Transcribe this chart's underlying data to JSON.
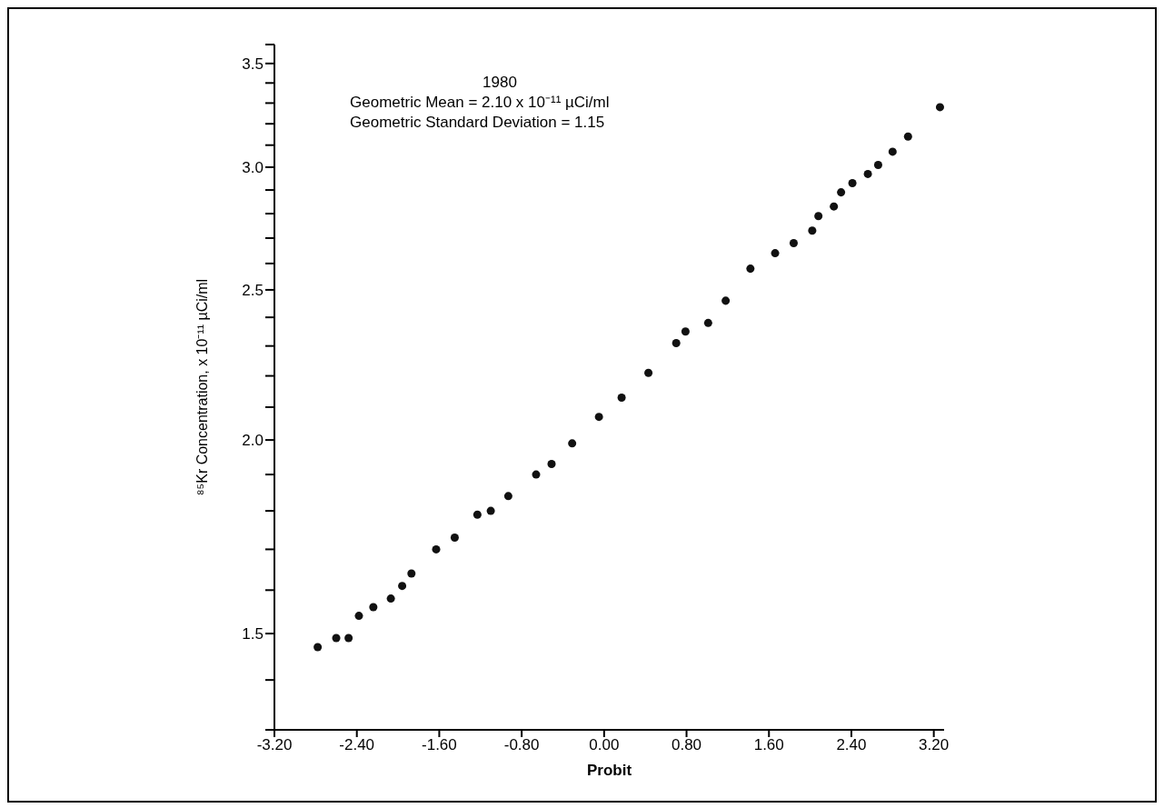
{
  "chart_data": {
    "type": "scatter",
    "xlabel": "Probit",
    "ylabel": "⁸⁵Kr Concentration, x 10⁻¹¹ µCi/ml",
    "annotations": [
      "1980",
      "Geometric Mean = 2.10 x 10⁻¹¹ µCi/ml",
      "Geometric Standard Deviation = 1.15"
    ],
    "x": [
      -2.78,
      -2.6,
      -2.48,
      -2.38,
      -2.24,
      -2.07,
      -1.96,
      -1.87,
      -1.63,
      -1.45,
      -1.23,
      -1.1,
      -0.93,
      -0.66,
      -0.51,
      -0.31,
      -0.05,
      0.17,
      0.43,
      0.7,
      0.79,
      1.01,
      1.18,
      1.42,
      1.66,
      1.84,
      2.02,
      2.08,
      2.23,
      2.3,
      2.41,
      2.56,
      2.66,
      2.8,
      2.95,
      3.26
    ],
    "series": [
      {
        "color": "#111111",
        "values": [
          1.47,
          1.49,
          1.49,
          1.54,
          1.56,
          1.58,
          1.61,
          1.64,
          1.7,
          1.73,
          1.79,
          1.8,
          1.84,
          1.9,
          1.93,
          1.99,
          2.07,
          2.13,
          2.21,
          2.31,
          2.35,
          2.38,
          2.46,
          2.58,
          2.64,
          2.68,
          2.73,
          2.79,
          2.83,
          2.89,
          2.93,
          2.97,
          3.01,
          3.07,
          3.14,
          3.28
        ]
      }
    ],
    "log": "y",
    "marker": "circle",
    "grid": false,
    "xlim": [
      -3.2,
      3.3
    ],
    "xticks": [
      {
        "value": -3.2,
        "label": "-3.20"
      },
      {
        "value": -2.4,
        "label": "-2.40"
      },
      {
        "value": -1.6,
        "label": "-1.60"
      },
      {
        "value": -0.8,
        "label": "-0.80"
      },
      {
        "value": 0,
        "label": "0.00"
      },
      {
        "value": 0.8,
        "label": "0.80"
      },
      {
        "value": 1.6,
        "label": "1.60"
      },
      {
        "value": 2.4,
        "label": "2.40"
      },
      {
        "value": 3.2,
        "label": "3.20"
      }
    ],
    "ylim": [
      1.3,
      3.6
    ],
    "yticks": [
      {
        "value": 1.3,
        "label": null
      },
      {
        "value": 1.4,
        "label": null
      },
      {
        "value": 1.5,
        "label": "1.5"
      },
      {
        "value": 1.6,
        "label": null
      },
      {
        "value": 1.7,
        "label": null
      },
      {
        "value": 1.8,
        "label": null
      },
      {
        "value": 1.9,
        "label": null
      },
      {
        "value": 2.0,
        "label": "2.0"
      },
      {
        "value": 2.1,
        "label": null
      },
      {
        "value": 2.2,
        "label": null
      },
      {
        "value": 2.3,
        "label": null
      },
      {
        "value": 2.4,
        "label": null
      },
      {
        "value": 2.5,
        "label": "2.5"
      },
      {
        "value": 2.6,
        "label": null
      },
      {
        "value": 2.7,
        "label": null
      },
      {
        "value": 2.8,
        "label": null
      },
      {
        "value": 2.9,
        "label": null
      },
      {
        "value": 3.0,
        "label": "3.0"
      },
      {
        "value": 3.1,
        "label": null
      },
      {
        "value": 3.2,
        "label": null
      },
      {
        "value": 3.3,
        "label": null
      },
      {
        "value": 3.4,
        "label": null
      },
      {
        "value": 3.5,
        "label": "3.5"
      },
      {
        "value": 3.6,
        "label": null
      }
    ]
  }
}
